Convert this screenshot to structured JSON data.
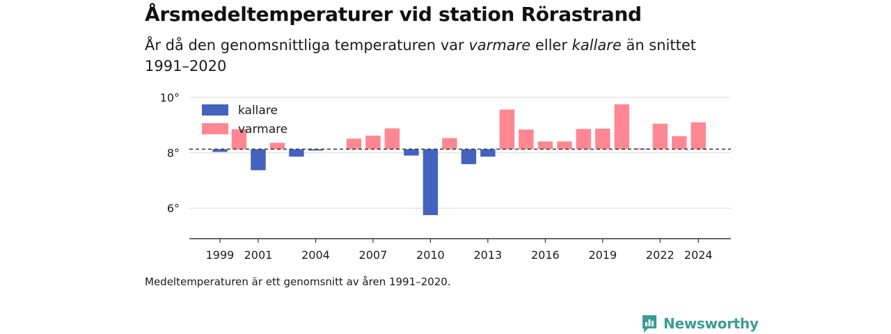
{
  "header": {
    "title": "Årsmedeltemperaturer vid station Rörastrand",
    "subtitle_part1": "År då den genomsnittliga temperaturen var ",
    "subtitle_em1": "varmare",
    "subtitle_part2": " eller ",
    "subtitle_em2": "kallare",
    "subtitle_part3": " än snittet 1991–2020"
  },
  "footnote": "Medeltemperaturen är ett genomsnitt av åren 1991–2020.",
  "brand": {
    "name": "Newsworthy",
    "icon": "newsworthy-logo-icon",
    "color": "#3a9c96"
  },
  "colors": {
    "cold": "#4363be",
    "warm": "#ff8793",
    "grid": "#dddddd",
    "axis": "#333333"
  },
  "chart_data": {
    "type": "bar",
    "baseline": 8.13,
    "ylim": [
      4.9,
      10.3
    ],
    "yticks": [
      6,
      8,
      10
    ],
    "ytick_labels": [
      "6°",
      "8°",
      "10°"
    ],
    "grid": true,
    "legend_position": "top-left",
    "legend": [
      {
        "key": "kallare",
        "label": "kallare",
        "color": "#4363be"
      },
      {
        "key": "varmare",
        "label": "varmare",
        "color": "#ff8793"
      }
    ],
    "xticks": [
      1999,
      2001,
      2004,
      2007,
      2010,
      2013,
      2016,
      2019,
      2022,
      2024
    ],
    "xlim": [
      1997.4,
      2025.7
    ],
    "years": [
      1999,
      2000,
      2001,
      2002,
      2003,
      2004,
      2005,
      2006,
      2007,
      2008,
      2009,
      2010,
      2011,
      2012,
      2013,
      2014,
      2015,
      2016,
      2017,
      2018,
      2019,
      2020,
      2021,
      2022,
      2023,
      2024
    ],
    "values": [
      8.03,
      8.85,
      7.37,
      8.36,
      7.86,
      8.08,
      null,
      8.51,
      8.62,
      8.88,
      7.9,
      5.75,
      8.53,
      7.59,
      7.86,
      9.56,
      8.84,
      8.41,
      8.41,
      8.86,
      8.87,
      9.75,
      8.16,
      9.05,
      8.6,
      9.1
    ]
  }
}
